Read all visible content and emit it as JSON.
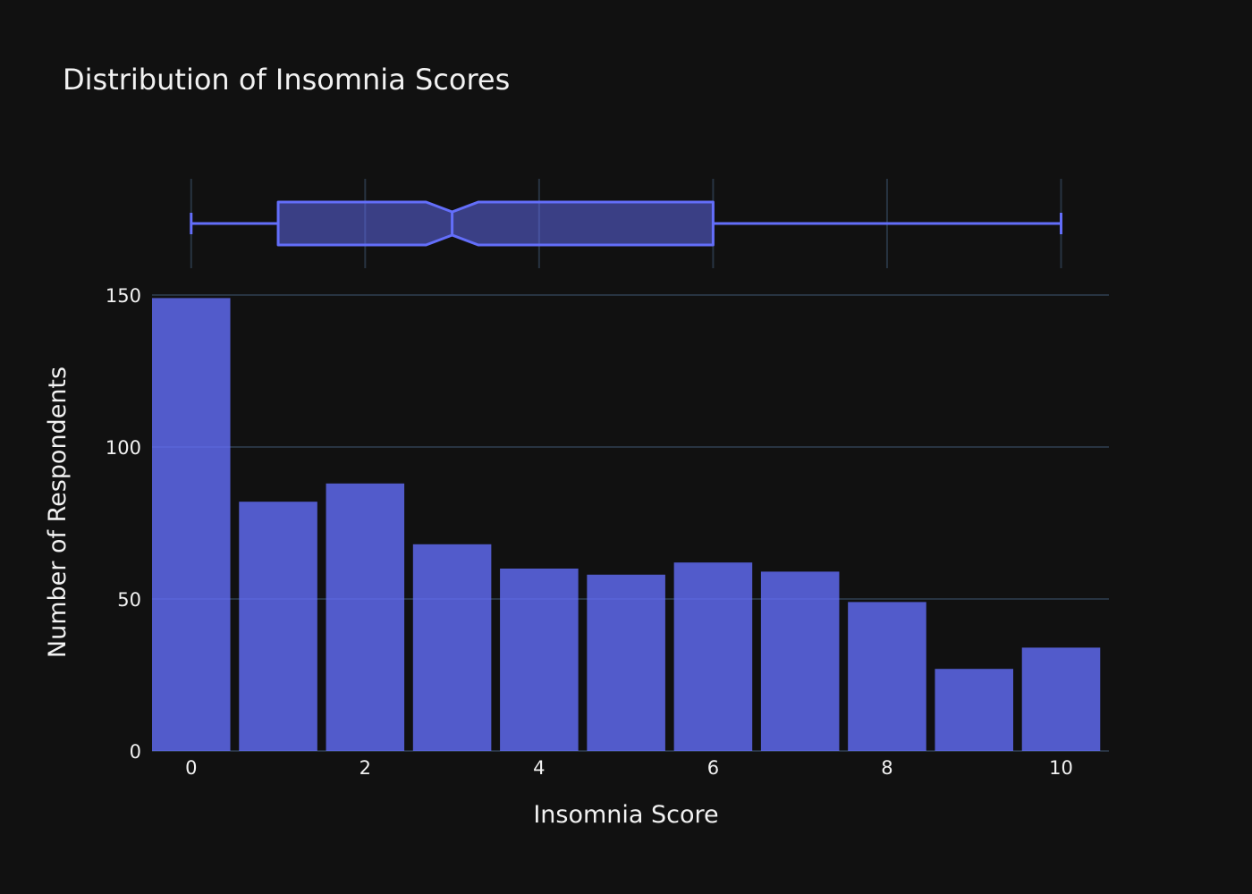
{
  "chart_data": {
    "type": "bar",
    "title": "Distribution of Insomnia Scores",
    "xlabel": "Insomnia Score",
    "ylabel": "Number of Respondents",
    "x": [
      0,
      1,
      2,
      3,
      4,
      5,
      6,
      7,
      8,
      9,
      10
    ],
    "values": [
      149,
      82,
      88,
      68,
      60,
      58,
      62,
      59,
      49,
      27,
      34
    ],
    "xlim": [
      -0.45,
      10.55
    ],
    "ylim": [
      0,
      150
    ],
    "xticks": [
      "0",
      "2",
      "4",
      "6",
      "8",
      "10"
    ],
    "yticks": [
      "0",
      "50",
      "100",
      "150"
    ],
    "grid": true,
    "box_summary": {
      "type": "box",
      "orientation": "horizontal",
      "notched": true,
      "min": 0,
      "q1": 1,
      "median": 3,
      "q3": 6,
      "max": 10,
      "notch_low": 2.7,
      "notch_high": 3.3
    },
    "colors": {
      "background": "#111111",
      "bar": "#636efa",
      "grid": "#283442",
      "text": "#f2f2f2"
    }
  }
}
